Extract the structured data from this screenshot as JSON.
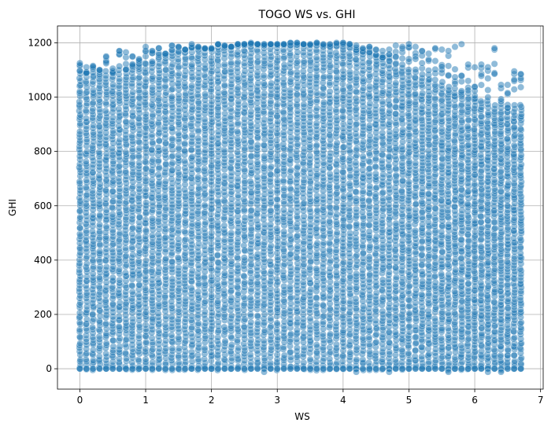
{
  "chart_data": {
    "type": "scatter",
    "title": "TOGO WS vs. GHI",
    "xlabel": "WS",
    "ylabel": "GHI",
    "xlim": [
      -0.34,
      7.04
    ],
    "ylim": [
      -75,
      1262
    ],
    "xticks": [
      0,
      1,
      2,
      3,
      4,
      5,
      6,
      7
    ],
    "yticks": [
      0,
      200,
      400,
      600,
      800,
      1000,
      1200
    ],
    "grid": true,
    "point_color": "#1f77b4",
    "point_alpha": 0.5,
    "ws_step": 0.1,
    "ws_range": [
      0,
      6.7
    ],
    "ghi_range": [
      -15,
      1200
    ],
    "series": [
      {
        "ws_values": [
          0.0,
          0.1,
          0.2,
          0.3,
          0.4,
          0.5,
          0.6,
          0.7,
          0.8,
          0.9,
          1.0,
          1.1,
          1.2,
          1.3,
          1.4,
          1.5,
          1.6,
          1.7,
          1.8,
          1.9,
          2.0,
          2.1,
          2.2,
          2.3,
          2.4,
          2.5,
          2.6,
          2.7,
          2.8,
          2.9,
          3.0,
          3.1,
          3.2,
          3.3,
          3.4,
          3.5,
          3.6,
          3.7,
          3.8,
          3.9,
          4.0,
          4.1,
          4.2,
          4.3,
          4.4,
          4.5,
          4.6,
          4.7,
          4.8,
          4.9,
          5.0,
          5.1,
          5.2,
          5.3,
          5.4,
          5.5,
          5.6,
          5.7,
          5.8,
          5.9,
          6.0,
          6.1,
          6.2,
          6.3,
          6.4,
          6.5,
          6.6,
          6.7
        ],
        "ghi_max": [
          1125,
          1110,
          1115,
          1100,
          1150,
          1105,
          1170,
          1165,
          1150,
          1140,
          1185,
          1170,
          1180,
          1160,
          1190,
          1185,
          1175,
          1195,
          1185,
          1180,
          1180,
          1195,
          1190,
          1185,
          1195,
          1195,
          1200,
          1195,
          1195,
          1195,
          1195,
          1195,
          1200,
          1200,
          1195,
          1195,
          1200,
          1195,
          1195,
          1200,
          1200,
          1195,
          1190,
          1180,
          1185,
          1175,
          1170,
          1175,
          1190,
          1185,
          1195,
          1185,
          1170,
          1160,
          1180,
          1175,
          1170,
          1185,
          1195,
          1120,
          1110,
          1120,
          1110,
          1180,
          1045,
          1045,
          1095,
          1085
        ],
        "dense_top": [
          1085,
          1085,
          1080,
          1080,
          1090,
          1085,
          1095,
          1100,
          1110,
          1115,
          1120,
          1130,
          1140,
          1145,
          1150,
          1155,
          1160,
          1165,
          1170,
          1175,
          1175,
          1180,
          1180,
          1185,
          1185,
          1190,
          1190,
          1190,
          1190,
          1190,
          1190,
          1190,
          1190,
          1190,
          1190,
          1190,
          1190,
          1185,
          1185,
          1180,
          1180,
          1175,
          1170,
          1165,
          1160,
          1150,
          1140,
          1130,
          1120,
          1110,
          1100,
          1090,
          1080,
          1070,
          1060,
          1050,
          1040,
          1030,
          1020,
          1010,
          1000,
          990,
          980,
          970,
          960,
          960,
          970,
          975
        ]
      }
    ]
  }
}
